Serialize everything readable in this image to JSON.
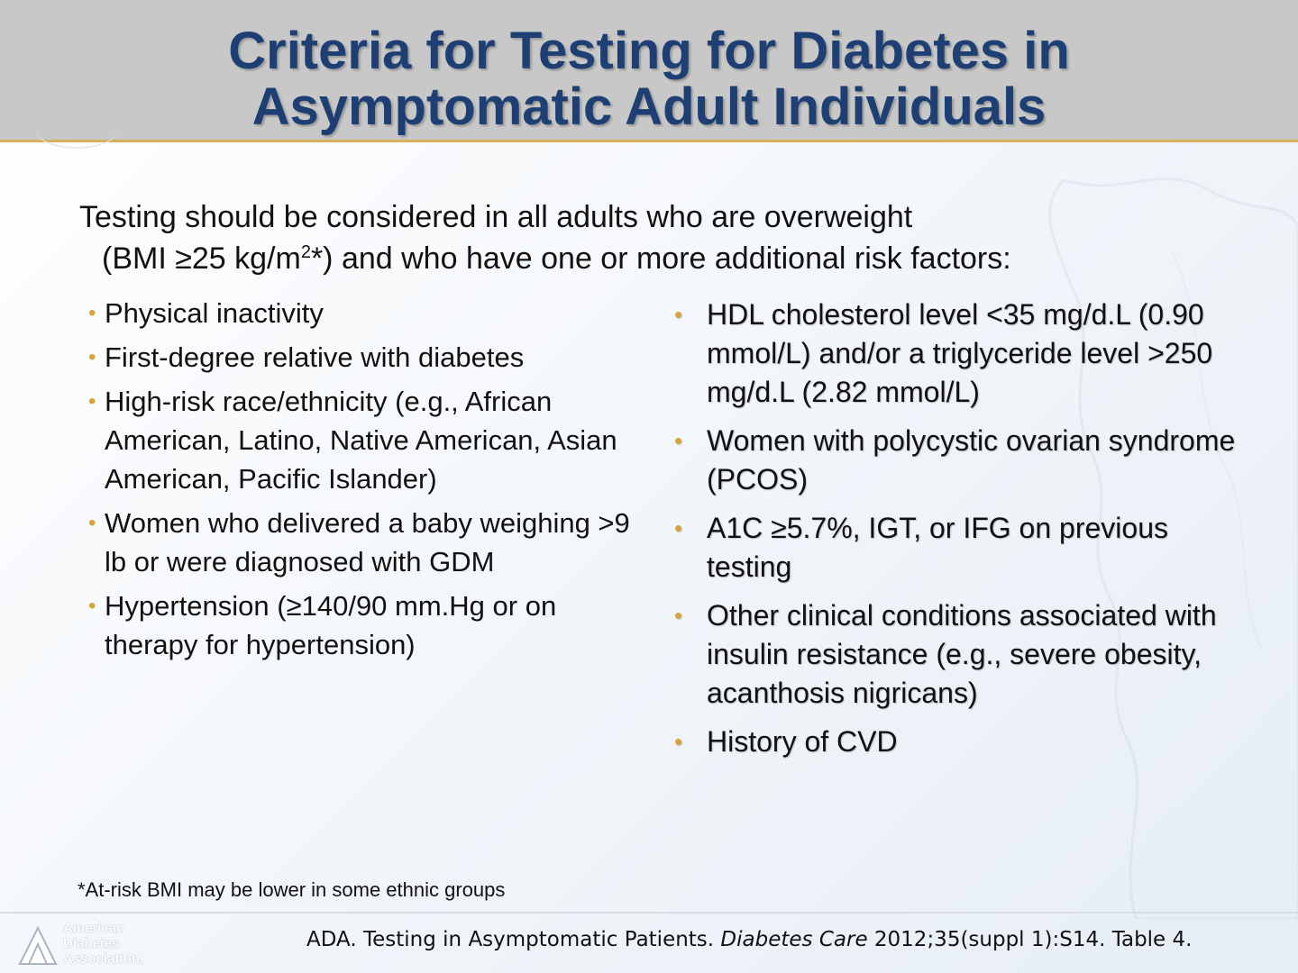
{
  "title": {
    "line1": "Criteria for Testing for Diabetes in",
    "line2": "Asymptomatic Adult Individuals"
  },
  "intro": {
    "line1": "Testing should be considered in all adults who are overweight",
    "line2_pre": "(BMI ≥25 kg/m",
    "line2_sup": "2",
    "line2_post": "*) and who have one or more additional risk factors:"
  },
  "left_items": [
    "Physical inactivity",
    "First-degree relative with diabetes",
    "High-risk race/ethnicity (e.g., African American, Latino, Native American, Asian American, Pacific Islander)",
    "Women who delivered a baby weighing >9 lb or were diagnosed with GDM",
    "Hypertension (≥140/90 mm.Hg or on therapy for hypertension)"
  ],
  "right_items": [
    "HDL cholesterol level <35 mg/d.L (0.90 mmol/L) and/or a triglyceride level >250 mg/d.L (2.82 mmol/L)",
    "Women with polycystic ovarian syndrome (PCOS)",
    "A1C ≥5.7%, IGT, or IFG on previous testing",
    "Other clinical conditions associated with insulin resistance (e.g., severe obesity, acanthosis nigricans)",
    "History of CVD"
  ],
  "bullet_glyph": "•",
  "footnote": "*At-risk BMI may be lower in some ethnic groups",
  "logo": {
    "line1": "American",
    "line2": "Diabetes",
    "line3": "Association."
  },
  "citation": {
    "pre": "ADA. Testing in Asymptomatic Patients. ",
    "journal": "Diabetes Care",
    "post": " 2012;35(suppl 1):S14. Table 4."
  },
  "colors": {
    "title": "#1e3f73",
    "header_bg": "#c8c8c8",
    "accent_gold": "#d6a43a"
  }
}
